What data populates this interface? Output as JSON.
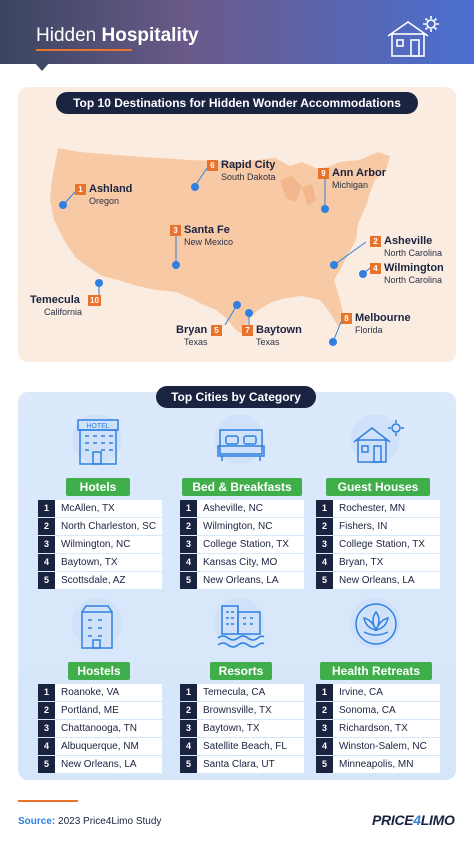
{
  "header": {
    "title_part1": "Hidden",
    "title_part2": "Hospitality"
  },
  "map": {
    "title": "Top 10 Destinations for Hidden Wonder Accommodations",
    "markers": [
      {
        "rank": "1",
        "city": "Ashland",
        "state": "Oregon"
      },
      {
        "rank": "2",
        "city": "Asheville",
        "state": "North Carolina"
      },
      {
        "rank": "3",
        "city": "Santa Fe",
        "state": "New Mexico"
      },
      {
        "rank": "4",
        "city": "Wilmington",
        "state": "North Carolina"
      },
      {
        "rank": "5",
        "city": "Bryan",
        "state": "Texas"
      },
      {
        "rank": "6",
        "city": "Rapid City",
        "state": "South Dakota"
      },
      {
        "rank": "7",
        "city": "Baytown",
        "state": "Texas"
      },
      {
        "rank": "8",
        "city": "Melbourne",
        "state": "Florida"
      },
      {
        "rank": "9",
        "city": "Ann Arbor",
        "state": "Michigan"
      },
      {
        "rank": "10",
        "city": "Temecula",
        "state": "California"
      }
    ]
  },
  "categories": {
    "title": "Top Cities by Category",
    "items": [
      {
        "label": "Hotels",
        "icon": "hotel-building-icon",
        "cities": [
          "McAllen, TX",
          "North Charleston, SC",
          "Wilmington, NC",
          "Baytown, TX",
          "Scottsdale, AZ"
        ]
      },
      {
        "label": "Bed & Breakfasts",
        "icon": "bed-icon",
        "cities": [
          "Asheville, NC",
          "Wilmington, NC",
          "College Station, TX",
          "Kansas City, MO",
          "New Orleans, LA"
        ]
      },
      {
        "label": "Guest Houses",
        "icon": "guest-house-icon",
        "cities": [
          "Rochester, MN",
          "Fishers, IN",
          "College Station, TX",
          "Bryan, TX",
          "New Orleans, LA"
        ]
      },
      {
        "label": "Hostels",
        "icon": "hostel-building-icon",
        "cities": [
          "Roanoke, VA",
          "Portland, ME",
          "Chattanooga, TN",
          "Albuquerque, NM",
          "New Orleans, LA"
        ]
      },
      {
        "label": "Resorts",
        "icon": "resort-pool-icon",
        "cities": [
          "Temecula, CA",
          "Brownsville, TX",
          "Baytown, TX",
          "Satellite Beach, FL",
          "Santa Clara, UT"
        ]
      },
      {
        "label": "Health Retreats",
        "icon": "lotus-icon",
        "cities": [
          "Irvine, CA",
          "Sonoma, CA",
          "Richardson, TX",
          "Winston-Salem, NC",
          "Minneapolis, MN"
        ]
      }
    ],
    "ranks": [
      "1",
      "2",
      "3",
      "4",
      "5"
    ]
  },
  "footer": {
    "source_label": "Source:",
    "source_text": "2023 Price4Limo Study",
    "logo_part1": "PRICE",
    "logo_part2": "4",
    "logo_part3": "LIMO"
  },
  "colors": {
    "navy": "#1a2340",
    "orange": "#e8732c",
    "blue": "#2f80e0",
    "green": "#3fae4b",
    "map_fill": "#f7c9a5"
  }
}
